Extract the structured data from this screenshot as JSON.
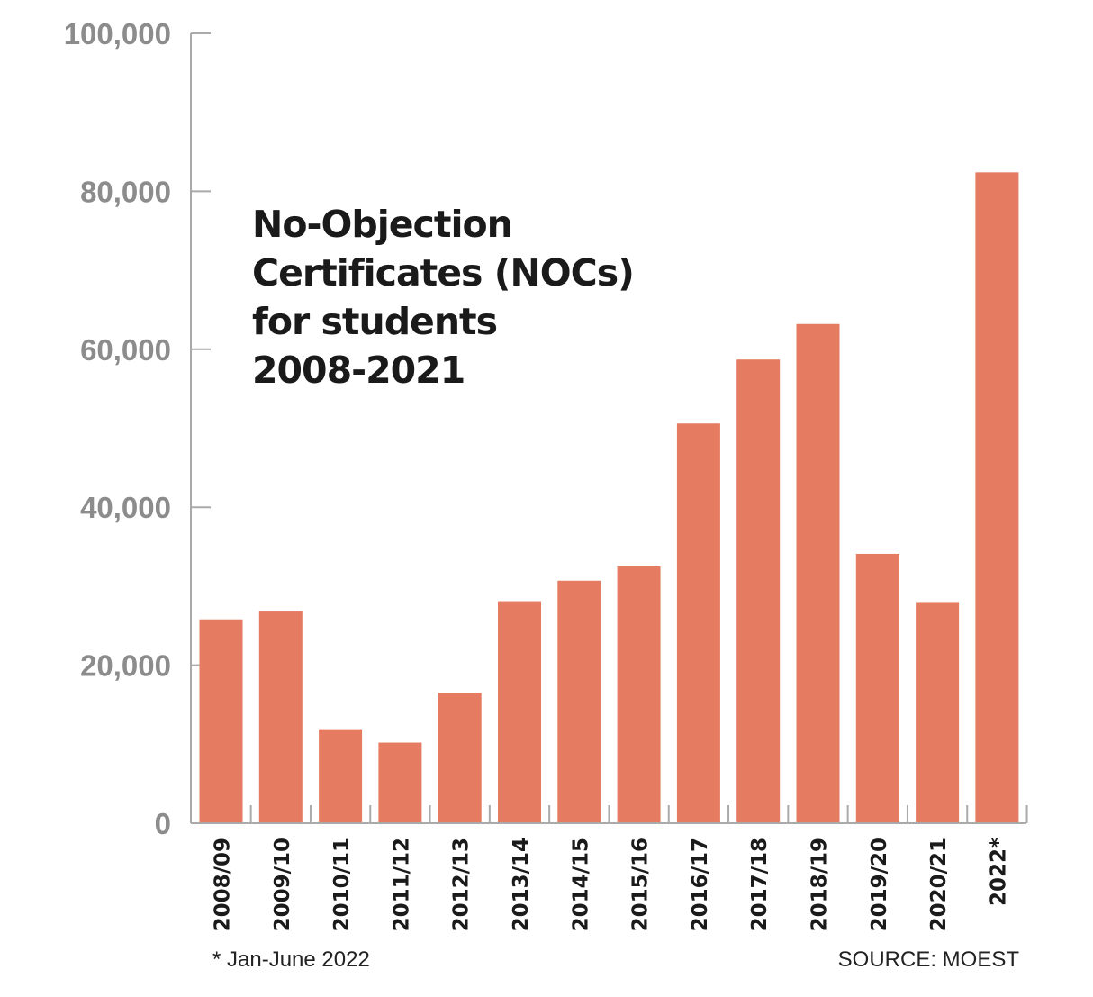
{
  "chart_data": {
    "type": "bar",
    "title": [
      "No-Objection",
      "Certificates (NOCs)",
      "for students",
      "2008-2021"
    ],
    "categories": [
      "2008/09",
      "2009/10",
      "2010/11",
      "2011/12",
      "2012/13",
      "2013/14",
      "2014/15",
      "2015/16",
      "2016/17",
      "2017/18",
      "2018/19",
      "2019/20",
      "2020/21",
      "2022*"
    ],
    "values": [
      25800,
      26900,
      11900,
      10200,
      16500,
      28100,
      30700,
      32500,
      50600,
      58700,
      63200,
      34100,
      28000,
      82400
    ],
    "yticks": [
      "0",
      "20,000",
      "40,000",
      "60,000",
      "80,000",
      "100,000"
    ],
    "ytick_values": [
      0,
      20000,
      40000,
      60000,
      80000,
      100000
    ],
    "ylim": [
      0,
      100000
    ],
    "xlabel": "",
    "ylabel": "",
    "grid": false,
    "footnote": "* Jan-June 2022",
    "source": "SOURCE: MOEST",
    "colors": {
      "bar": "#e57b60",
      "axis": "#aaaaaa",
      "tick_label": "#8c8c8c",
      "category_label": "#1a1a1a"
    }
  }
}
